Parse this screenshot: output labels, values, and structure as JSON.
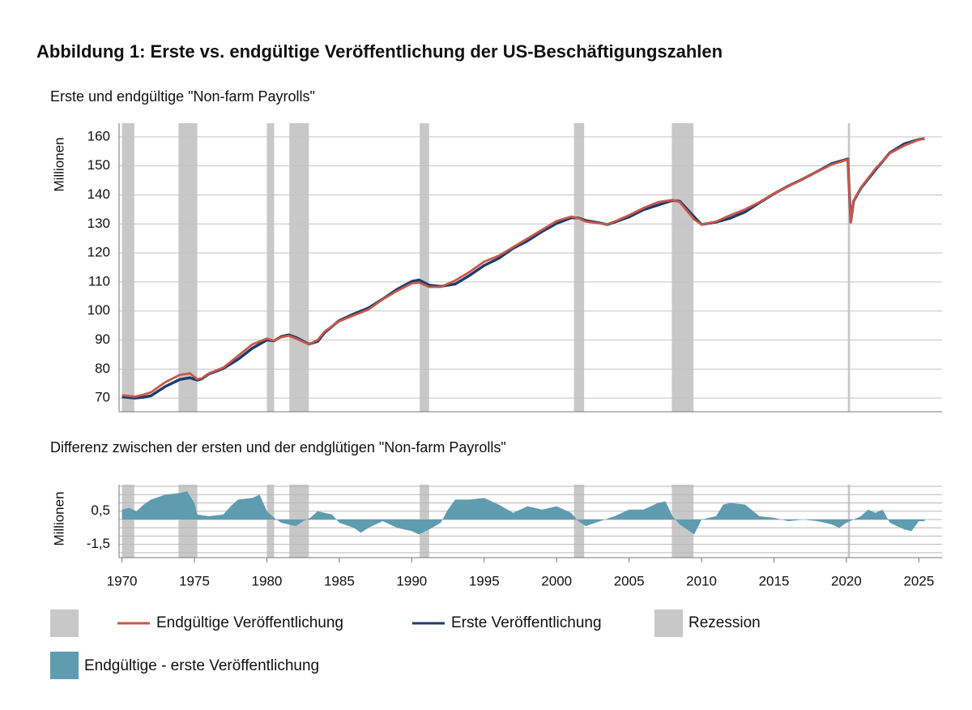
{
  "title": "Abbildung 1: Erste vs. endgültige Veröffentlichung der US-Beschäftigungszahlen",
  "chart_data": [
    {
      "type": "line",
      "subtitle": "Erste und endgültige \"Non-farm Payrolls\"",
      "ylabel": "Millionen",
      "x": [
        1970.0,
        1970.9,
        1971.5,
        1972.0,
        1973.0,
        1974.0,
        1974.7,
        1975.2,
        1975.5,
        1976.0,
        1977.0,
        1978.0,
        1979.0,
        1980.0,
        1980.5,
        1981.0,
        1981.5,
        1982.0,
        1982.9,
        1983.5,
        1984.0,
        1985.0,
        1986.0,
        1987.0,
        1988.0,
        1989.0,
        1990.0,
        1990.5,
        1991.2,
        1992.0,
        1993.0,
        1994.0,
        1995.0,
        1996.0,
        1997.0,
        1998.0,
        1999.0,
        2000.0,
        2001.0,
        2001.5,
        2002.0,
        2003.0,
        2003.5,
        2004.0,
        2005.0,
        2006.0,
        2007.0,
        2008.0,
        2008.5,
        2009.0,
        2009.5,
        2010.0,
        2011.0,
        2012.0,
        2013.0,
        2014.0,
        2015.0,
        2016.0,
        2017.0,
        2018.0,
        2019.0,
        2020.1,
        2020.3,
        2020.5,
        2021.0,
        2022.0,
        2023.0,
        2024.0,
        2025.0,
        2025.4
      ],
      "series": [
        {
          "name": "Endgültige Veröffentlichung",
          "color": "#c8584a",
          "values": [
            71.0,
            70.5,
            71.2,
            72.0,
            75.5,
            78.0,
            78.5,
            76.5,
            76.8,
            78.5,
            80.5,
            84.5,
            88.5,
            90.5,
            89.8,
            91.0,
            91.5,
            90.5,
            88.5,
            90.0,
            93.0,
            96.5,
            98.5,
            100.5,
            104.0,
            107.0,
            109.5,
            109.8,
            108.3,
            108.3,
            110.5,
            113.5,
            117.0,
            119.0,
            122.0,
            125.0,
            128.0,
            131.0,
            132.5,
            132.0,
            130.8,
            130.2,
            129.9,
            130.8,
            133.0,
            135.5,
            137.5,
            138.3,
            137.5,
            134.5,
            131.5,
            129.8,
            130.8,
            133.0,
            135.0,
            137.5,
            140.5,
            143.0,
            145.5,
            148.0,
            150.5,
            152.2,
            130.5,
            138.0,
            142.5,
            149.0,
            154.3,
            157.0,
            159.0,
            159.3
          ]
        },
        {
          "name": "Erste Veröffentlichung",
          "color": "#1d3b6e",
          "values": [
            70.4,
            70.0,
            70.3,
            70.8,
            74.0,
            76.4,
            77.0,
            76.2,
            76.6,
            78.3,
            80.2,
            83.3,
            87.2,
            90.0,
            89.7,
            91.2,
            91.8,
            90.9,
            88.6,
            89.5,
            92.6,
            96.7,
            99.0,
            101.0,
            104.1,
            107.5,
            110.2,
            110.7,
            108.9,
            108.5,
            109.3,
            112.3,
            115.7,
            118.1,
            121.6,
            124.2,
            127.4,
            130.2,
            132.1,
            132.1,
            131.2,
            130.3,
            129.8,
            130.6,
            132.4,
            134.9,
            136.5,
            138.1,
            137.8,
            135.1,
            132.4,
            129.8,
            130.6,
            132.0,
            134.1,
            137.3,
            140.4,
            143.1,
            145.5,
            148.1,
            150.8,
            152.4,
            130.7,
            137.9,
            142.3,
            148.6,
            154.5,
            157.6,
            159.1,
            159.4
          ]
        }
      ],
      "xlim": [
        1969.8,
        2026.6
      ],
      "ylim": [
        65.3,
        164.7
      ],
      "yticks": [
        70,
        80,
        90,
        100,
        110,
        120,
        130,
        140,
        150,
        160
      ],
      "grid": true,
      "recessions": [
        [
          1970.0,
          1970.85
        ],
        [
          1973.9,
          1975.2
        ],
        [
          1980.0,
          1980.5
        ],
        [
          1981.55,
          1982.9
        ],
        [
          1990.55,
          1991.2
        ],
        [
          2001.2,
          2001.9
        ],
        [
          2007.95,
          2009.45
        ],
        [
          2020.1,
          2020.25
        ]
      ],
      "recession_label": "Rezession",
      "recession_color": "#c8c8c8"
    },
    {
      "type": "area",
      "subtitle": "Differenz zwischen der ersten und der endglütigen \"Non-farm Payrolls\"",
      "ylabel": "Millionen",
      "x": [
        1970.0,
        1970.5,
        1971.0,
        1971.5,
        1972.0,
        1973.0,
        1974.0,
        1974.5,
        1975.0,
        1975.2,
        1976.0,
        1977.0,
        1977.5,
        1978.0,
        1979.0,
        1979.5,
        1980.0,
        1980.5,
        1981.0,
        1982.0,
        1982.5,
        1983.0,
        1983.5,
        1984.5,
        1985.0,
        1986.0,
        1986.5,
        1987.0,
        1988.0,
        1989.0,
        1990.0,
        1990.5,
        1991.2,
        1992.0,
        1992.5,
        1993.0,
        1994.0,
        1995.0,
        1996.0,
        1997.0,
        1998.0,
        1999.0,
        2000.0,
        2001.0,
        2001.5,
        2002.0,
        2003.0,
        2004.0,
        2005.0,
        2006.0,
        2007.0,
        2007.5,
        2008.0,
        2008.5,
        2009.0,
        2009.5,
        2010.0,
        2011.0,
        2011.5,
        2012.0,
        2013.0,
        2014.0,
        2015.0,
        2016.0,
        2017.0,
        2018.0,
        2019.0,
        2019.5,
        2020.0,
        2021.0,
        2021.5,
        2022.0,
        2022.5,
        2023.0,
        2023.5,
        2024.0,
        2024.5,
        2025.0,
        2025.4
      ],
      "series": [
        {
          "name": "Endgültige - erste Veröffentlichung",
          "color": "#5f9cb0",
          "values": [
            0.6,
            0.7,
            0.5,
            0.9,
            1.2,
            1.5,
            1.6,
            1.7,
            1.0,
            0.3,
            0.2,
            0.3,
            0.8,
            1.2,
            1.3,
            1.5,
            0.5,
            0.1,
            -0.2,
            -0.4,
            -0.1,
            0.1,
            0.5,
            0.3,
            -0.2,
            -0.5,
            -0.8,
            -0.5,
            -0.1,
            -0.5,
            -0.7,
            -0.9,
            -0.6,
            -0.2,
            0.6,
            1.2,
            1.2,
            1.3,
            0.9,
            0.4,
            0.8,
            0.6,
            0.8,
            0.4,
            -0.1,
            -0.4,
            -0.1,
            0.2,
            0.6,
            0.6,
            1.0,
            1.1,
            0.2,
            -0.3,
            -0.6,
            -0.9,
            0.0,
            0.2,
            0.9,
            1.0,
            0.9,
            0.2,
            0.1,
            -0.1,
            0.0,
            -0.1,
            -0.3,
            -0.5,
            -0.2,
            0.2,
            0.6,
            0.4,
            0.6,
            -0.2,
            -0.4,
            -0.6,
            -0.7,
            -0.1,
            -0.1
          ]
        }
      ],
      "xlim": [
        1969.8,
        2026.6
      ],
      "ylim": [
        -2.3,
        2.1
      ],
      "yticks": [
        {
          "value": 0.5,
          "label": "0,5"
        },
        {
          "value": -1.5,
          "label": "-1,5"
        }
      ],
      "ygrid": [
        2,
        1.5,
        1,
        0.5,
        0,
        -0.5,
        -1,
        -1.5,
        -2
      ],
      "xticks": [
        1970,
        1975,
        1980,
        1985,
        1990,
        1995,
        2000,
        2005,
        2010,
        2015,
        2020,
        2025
      ]
    }
  ]
}
